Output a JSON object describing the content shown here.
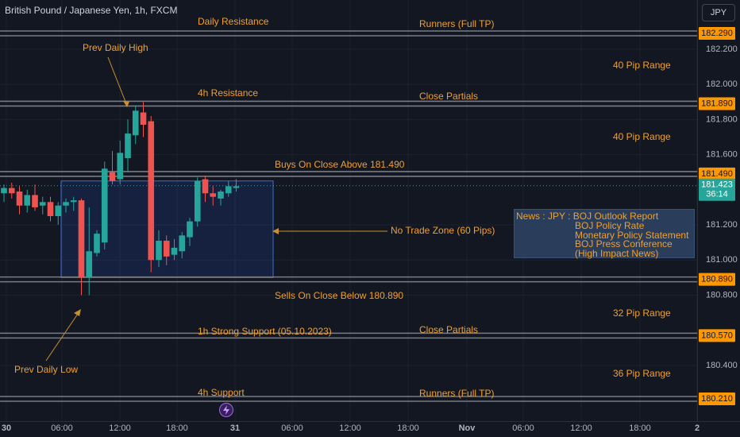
{
  "header": {
    "title": "British Pound / Japanese Yen, 1h, FXCM",
    "currency_button": "JPY"
  },
  "price_axis": {
    "ticks": [
      "182.200",
      "182.000",
      "181.800",
      "181.600",
      "181.200",
      "181.000",
      "180.800",
      "180.400"
    ],
    "highlighted_labels": [
      {
        "text": "182.290",
        "color": "#ff9800"
      },
      {
        "text": "181.890",
        "color": "#ff9800"
      },
      {
        "text": "181.490",
        "color": "#ff9800"
      },
      {
        "text": "180.890",
        "color": "#ff9800"
      },
      {
        "text": "180.570",
        "color": "#ff9800"
      },
      {
        "text": "180.210",
        "color": "#ff9800"
      }
    ],
    "current_price": "181.423",
    "countdown": "36:14",
    "current_color": "#26a69a"
  },
  "time_axis": {
    "labels": [
      "30",
      "06:00",
      "12:00",
      "18:00",
      "31",
      "06:00",
      "12:00",
      "18:00",
      "Nov",
      "06:00",
      "12:00",
      "18:00",
      "2"
    ]
  },
  "annotations": {
    "daily_resistance": "Daily Resistance",
    "runners_top": "Runners (Full TP)",
    "prev_daily_high": "Prev Daily High",
    "range_40_top": "40 Pip Range",
    "h4_resistance": "4h Resistance",
    "close_partials_top": "Close Partials",
    "range_40_mid": "40 Pip Range",
    "buys": "Buys On Close Above 181.490",
    "no_trade": "No Trade Zone (60 Pips)",
    "sells": "Sells On Close Below 180.890",
    "range_32": "32 Pip Range",
    "strong_support": "1h Strong Support (05.10.2023)",
    "close_partials_bottom": "Close Partials",
    "prev_daily_low": "Prev Daily Low",
    "range_36": "36 Pip Range",
    "h4_support": "4h Support",
    "runners_bottom": "Runners (Full TP)"
  },
  "news": {
    "lines": [
      "News : JPY : BOJ Outlook Report",
      "BOJ Policy Rate",
      "Monetary Policy Statement",
      "BOJ Press Conference",
      "(High Impact News)"
    ]
  },
  "colors": {
    "up": "#26a69a",
    "down": "#ef5350",
    "annotation": "#f0a030",
    "level_line": "#787b86",
    "zone": "#2962ff"
  },
  "chart_data": {
    "type": "candlestick",
    "symbol": "GBPJPY",
    "timeframe": "1h",
    "ylim": [
      180.17,
      182.43
    ],
    "levels": [
      182.29,
      181.89,
      181.49,
      180.89,
      180.57,
      180.21
    ],
    "no_trade_zone": [
      180.9,
      181.45
    ],
    "candles": [
      {
        "o": 181.38,
        "h": 181.43,
        "l": 181.33,
        "c": 181.41
      },
      {
        "o": 181.41,
        "h": 181.44,
        "l": 181.35,
        "c": 181.38
      },
      {
        "o": 181.39,
        "h": 181.42,
        "l": 181.26,
        "c": 181.31
      },
      {
        "o": 181.31,
        "h": 181.4,
        "l": 181.27,
        "c": 181.37
      },
      {
        "o": 181.37,
        "h": 181.43,
        "l": 181.28,
        "c": 181.3
      },
      {
        "o": 181.31,
        "h": 181.36,
        "l": 181.26,
        "c": 181.33
      },
      {
        "o": 181.33,
        "h": 181.36,
        "l": 181.22,
        "c": 181.25
      },
      {
        "o": 181.25,
        "h": 181.33,
        "l": 181.2,
        "c": 181.31
      },
      {
        "o": 181.31,
        "h": 181.35,
        "l": 181.27,
        "c": 181.33
      },
      {
        "o": 181.33,
        "h": 181.36,
        "l": 181.28,
        "c": 181.34
      },
      {
        "o": 181.34,
        "h": 181.35,
        "l": 180.8,
        "c": 180.9
      },
      {
        "o": 180.9,
        "h": 181.3,
        "l": 180.8,
        "c": 181.05
      },
      {
        "o": 181.04,
        "h": 181.17,
        "l": 181.02,
        "c": 181.15
      },
      {
        "o": 181.1,
        "h": 181.56,
        "l": 181.06,
        "c": 181.52
      },
      {
        "o": 181.5,
        "h": 181.62,
        "l": 181.43,
        "c": 181.45
      },
      {
        "o": 181.46,
        "h": 181.68,
        "l": 181.43,
        "c": 181.61
      },
      {
        "o": 181.58,
        "h": 181.8,
        "l": 181.5,
        "c": 181.72
      },
      {
        "o": 181.71,
        "h": 181.88,
        "l": 181.66,
        "c": 181.85
      },
      {
        "o": 181.84,
        "h": 181.9,
        "l": 181.7,
        "c": 181.77
      },
      {
        "o": 181.79,
        "h": 181.82,
        "l": 180.93,
        "c": 181.0
      },
      {
        "o": 181.0,
        "h": 181.17,
        "l": 180.96,
        "c": 181.11
      },
      {
        "o": 181.11,
        "h": 181.14,
        "l": 180.97,
        "c": 181.02
      },
      {
        "o": 181.03,
        "h": 181.12,
        "l": 181.0,
        "c": 181.07
      },
      {
        "o": 181.05,
        "h": 181.16,
        "l": 181.01,
        "c": 181.14
      },
      {
        "o": 181.13,
        "h": 181.24,
        "l": 181.08,
        "c": 181.22
      },
      {
        "o": 181.22,
        "h": 181.47,
        "l": 181.19,
        "c": 181.45
      },
      {
        "o": 181.46,
        "h": 181.48,
        "l": 181.33,
        "c": 181.38
      },
      {
        "o": 181.38,
        "h": 181.42,
        "l": 181.31,
        "c": 181.36
      },
      {
        "o": 181.35,
        "h": 181.4,
        "l": 181.31,
        "c": 181.39
      },
      {
        "o": 181.38,
        "h": 181.45,
        "l": 181.36,
        "c": 181.42
      },
      {
        "o": 181.41,
        "h": 181.46,
        "l": 181.39,
        "c": 181.42
      }
    ]
  }
}
